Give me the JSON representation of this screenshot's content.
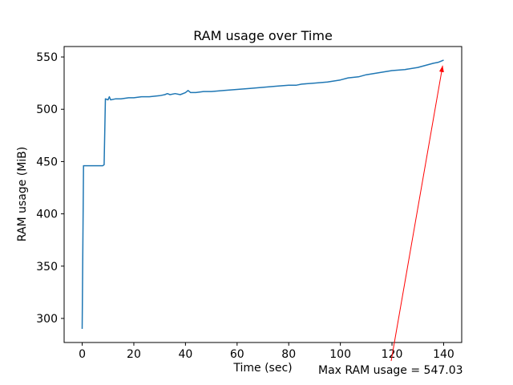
{
  "figure": {
    "background": "#ffffff"
  },
  "chart_data": {
    "type": "line",
    "title": "RAM usage over Time",
    "xlabel": "Time (sec)",
    "ylabel": "RAM usage (MiB)",
    "x": [
      0,
      0.5,
      1,
      8,
      8.5,
      9,
      10,
      10.5,
      11,
      13,
      15,
      18,
      20,
      23,
      26,
      30,
      32,
      33,
      34,
      36,
      38,
      40,
      41,
      42,
      44,
      47,
      50,
      55,
      60,
      65,
      70,
      75,
      80,
      83,
      85,
      90,
      95,
      100,
      103,
      107,
      110,
      115,
      120,
      125,
      130,
      133,
      136,
      138,
      139,
      140
    ],
    "y": [
      290,
      446,
      446,
      446,
      447,
      510,
      509,
      512,
      509,
      510,
      510,
      511,
      511,
      512,
      512,
      513,
      514,
      515,
      514,
      515,
      514,
      516,
      518,
      516,
      516,
      517,
      517,
      518,
      519,
      520,
      521,
      522,
      523,
      523,
      524,
      525,
      526,
      528,
      530,
      531,
      533,
      535,
      537,
      538,
      540,
      542,
      544,
      545,
      546,
      547.03
    ],
    "xlim": [
      -7,
      147
    ],
    "ylim": [
      277,
      560
    ],
    "xticks": [
      0,
      20,
      40,
      60,
      80,
      100,
      120,
      140
    ],
    "yticks": [
      300,
      350,
      400,
      450,
      500,
      550
    ],
    "line_color": "#1f77b4",
    "grid": false,
    "legend": "none",
    "annotation": {
      "text": "Max RAM usage = 547.03",
      "color": "#ff0000",
      "target_x": 140,
      "target_y": 547.03
    }
  }
}
